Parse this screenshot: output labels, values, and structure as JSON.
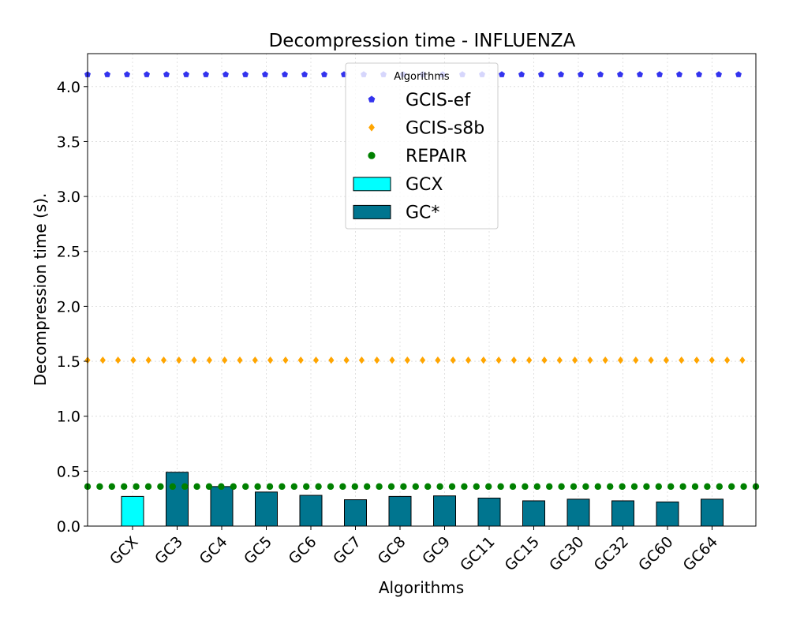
{
  "chart_data": {
    "type": "bar",
    "title": "Decompression time -  INFLUENZA",
    "xlabel": "Algorithms",
    "ylabel": "Decompression time (s).",
    "ylim": [
      0,
      4.3
    ],
    "yticks": [
      "0.0",
      "0.5",
      "1.0",
      "1.5",
      "2.0",
      "2.5",
      "3.0",
      "3.5",
      "4.0"
    ],
    "grid": true,
    "categories": [
      "GCX",
      "GC3",
      "GC4",
      "GC5",
      "GC6",
      "GC7",
      "GC8",
      "GC9",
      "GC11",
      "GC15",
      "GC30",
      "GC32",
      "GC60",
      "GC64"
    ],
    "series": [
      {
        "name": "GCX",
        "kind": "bar",
        "color": "#00ffff",
        "values": [
          0.27,
          null,
          null,
          null,
          null,
          null,
          null,
          null,
          null,
          null,
          null,
          null,
          null,
          null
        ]
      },
      {
        "name": "GC*",
        "kind": "bar",
        "color": "#00758f",
        "values": [
          null,
          0.49,
          0.36,
          0.31,
          0.28,
          0.24,
          0.27,
          0.275,
          0.255,
          0.23,
          0.245,
          0.23,
          0.22,
          0.245
        ]
      },
      {
        "name": "GCIS-ef",
        "kind": "hline-dotted",
        "marker": "pentagon",
        "color": "#3333ee",
        "value": 4.11
      },
      {
        "name": "GCIS-s8b",
        "kind": "hline-dotted",
        "marker": "diamond",
        "color": "#ffa500",
        "value": 1.51
      },
      {
        "name": "REPAIR",
        "kind": "hline-dotted",
        "marker": "circle",
        "color": "#008000",
        "value": 0.36
      }
    ],
    "legend": {
      "title": "Algorithms",
      "placement": "top-center",
      "order": [
        "GCIS-ef",
        "GCIS-s8b",
        "REPAIR",
        "GCX",
        "GC*"
      ]
    }
  }
}
